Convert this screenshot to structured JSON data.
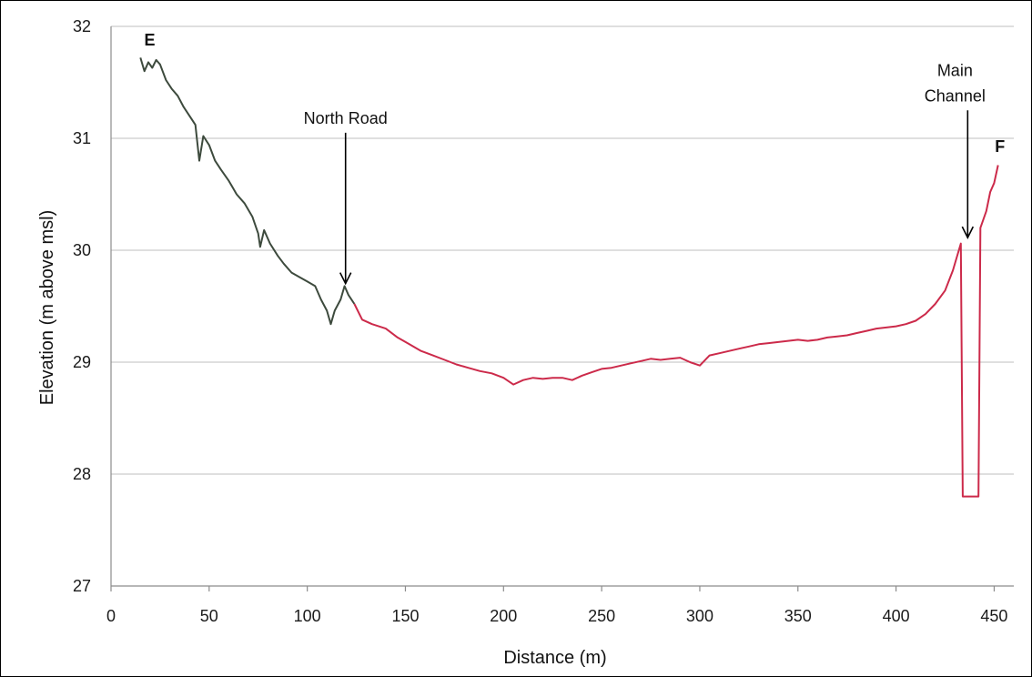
{
  "chart_data": {
    "type": "line",
    "xlabel": "Distance (m)",
    "ylabel": "Elevation (m above msl)",
    "xlim": [
      0,
      460
    ],
    "ylim": [
      27,
      32
    ],
    "x_ticks": [
      "0",
      "50",
      "100",
      "150",
      "200",
      "250",
      "300",
      "350",
      "400",
      "450"
    ],
    "y_ticks": [
      "27",
      "28",
      "29",
      "30",
      "31",
      "32"
    ],
    "grid": "horizontal",
    "colors": {
      "segment_1": "#3d4a3d",
      "segment_2": "#cc2a4a",
      "grid": "#bfbfbf",
      "axis": "#8c8c8c"
    },
    "series": [
      {
        "points": [
          [
            15,
            31.72
          ],
          [
            17,
            31.6
          ],
          [
            19,
            31.68
          ],
          [
            21,
            31.63
          ],
          [
            23,
            31.7
          ],
          [
            25,
            31.66
          ],
          [
            28,
            31.52
          ],
          [
            31,
            31.44
          ],
          [
            34,
            31.38
          ],
          [
            37,
            31.28
          ],
          [
            40,
            31.2
          ],
          [
            43,
            31.12
          ],
          [
            45,
            30.8
          ],
          [
            47,
            31.02
          ],
          [
            50,
            30.94
          ],
          [
            53,
            30.8
          ],
          [
            56,
            30.72
          ],
          [
            60,
            30.62
          ],
          [
            64,
            30.5
          ],
          [
            68,
            30.42
          ],
          [
            72,
            30.3
          ],
          [
            75,
            30.15
          ],
          [
            76,
            30.03
          ],
          [
            78,
            30.18
          ],
          [
            81,
            30.06
          ],
          [
            85,
            29.95
          ],
          [
            88,
            29.88
          ],
          [
            92,
            29.8
          ],
          [
            96,
            29.76
          ],
          [
            100,
            29.72
          ],
          [
            104,
            29.68
          ],
          [
            107,
            29.56
          ],
          [
            110,
            29.46
          ],
          [
            112,
            29.34
          ],
          [
            114,
            29.46
          ],
          [
            117,
            29.56
          ],
          [
            119,
            29.68
          ],
          [
            121,
            29.6
          ],
          [
            124,
            29.52
          ]
        ]
      },
      {
        "points": [
          [
            124,
            29.52
          ],
          [
            128,
            29.38
          ],
          [
            133,
            29.34
          ],
          [
            140,
            29.3
          ],
          [
            146,
            29.22
          ],
          [
            152,
            29.16
          ],
          [
            158,
            29.1
          ],
          [
            164,
            29.06
          ],
          [
            170,
            29.02
          ],
          [
            176,
            28.98
          ],
          [
            182,
            28.95
          ],
          [
            188,
            28.92
          ],
          [
            194,
            28.9
          ],
          [
            200,
            28.86
          ],
          [
            205,
            28.8
          ],
          [
            210,
            28.84
          ],
          [
            215,
            28.86
          ],
          [
            220,
            28.85
          ],
          [
            225,
            28.86
          ],
          [
            230,
            28.86
          ],
          [
            235,
            28.84
          ],
          [
            240,
            28.88
          ],
          [
            245,
            28.91
          ],
          [
            250,
            28.94
          ],
          [
            255,
            28.95
          ],
          [
            260,
            28.97
          ],
          [
            265,
            28.99
          ],
          [
            270,
            29.01
          ],
          [
            275,
            29.03
          ],
          [
            280,
            29.02
          ],
          [
            285,
            29.03
          ],
          [
            290,
            29.04
          ],
          [
            295,
            29.0
          ],
          [
            300,
            28.97
          ],
          [
            305,
            29.06
          ],
          [
            310,
            29.08
          ],
          [
            315,
            29.1
          ],
          [
            320,
            29.12
          ],
          [
            325,
            29.14
          ],
          [
            330,
            29.16
          ],
          [
            335,
            29.17
          ],
          [
            340,
            29.18
          ],
          [
            345,
            29.19
          ],
          [
            350,
            29.2
          ],
          [
            355,
            29.19
          ],
          [
            360,
            29.2
          ],
          [
            365,
            29.22
          ],
          [
            370,
            29.23
          ],
          [
            375,
            29.24
          ],
          [
            380,
            29.26
          ],
          [
            385,
            29.28
          ],
          [
            390,
            29.3
          ],
          [
            395,
            29.31
          ],
          [
            400,
            29.32
          ],
          [
            405,
            29.34
          ],
          [
            410,
            29.37
          ],
          [
            415,
            29.43
          ],
          [
            420,
            29.52
          ],
          [
            425,
            29.64
          ],
          [
            429,
            29.82
          ],
          [
            433,
            30.06
          ],
          [
            434,
            27.8
          ],
          [
            436,
            27.8
          ],
          [
            440,
            27.8
          ],
          [
            442,
            27.8
          ],
          [
            443,
            30.2
          ],
          [
            446,
            30.35
          ],
          [
            448,
            30.52
          ],
          [
            450,
            30.6
          ],
          [
            452,
            30.76
          ]
        ]
      }
    ],
    "annotations": [
      {
        "text": "North Road",
        "x": 119.5,
        "y": 29.67,
        "label_anchor_y": 31.05
      },
      {
        "text": "Main Channel",
        "x": 436.5,
        "y": 30.08,
        "label_anchor_y": 31.25
      }
    ],
    "points": [
      {
        "text": "E",
        "x": 16,
        "y": 31.73
      },
      {
        "text": "F",
        "x": 452,
        "y": 30.75
      }
    ]
  }
}
